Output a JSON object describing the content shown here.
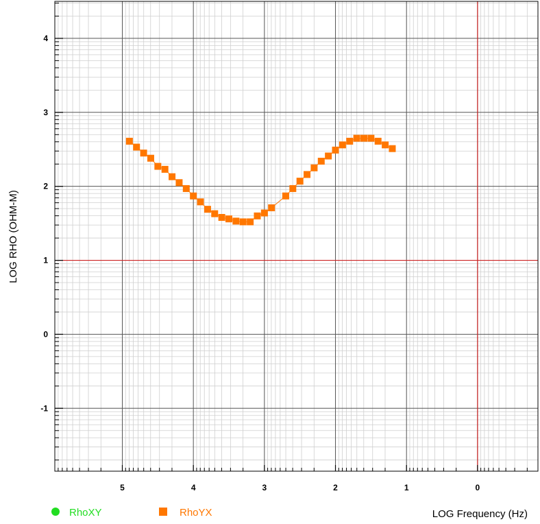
{
  "chart_data": {
    "type": "scatter",
    "xlabel": "LOG Frequency (Hz)",
    "ylabel": "LOG RHO (OHM-M)",
    "x_axis_reversed": true,
    "xlim": [
      5.95,
      -0.85
    ],
    "ylim": [
      -1.85,
      4.5
    ],
    "x_ticks": [
      5,
      4,
      3,
      2,
      1,
      0
    ],
    "x_tick_labels": [
      "5",
      "4",
      "3",
      "2",
      "1",
      "0"
    ],
    "y_ticks": [
      4,
      3,
      2,
      1,
      0,
      -1
    ],
    "y_tick_labels": [
      "4",
      "3",
      "2",
      "1",
      "0",
      "-1"
    ],
    "grid": true,
    "reference_lines": {
      "x": 0,
      "y": 1,
      "color": "#cc2222"
    },
    "legend_position": "bottom-left",
    "series": [
      {
        "name": "RhoXY",
        "color": "#22dd22",
        "marker": "circle",
        "x": [],
        "y": []
      },
      {
        "name": "RhoYX",
        "color": "#ff7700",
        "marker": "square",
        "x": [
          4.9,
          4.8,
          4.7,
          4.6,
          4.5,
          4.4,
          4.3,
          4.2,
          4.1,
          4.0,
          3.9,
          3.8,
          3.7,
          3.6,
          3.5,
          3.4,
          3.3,
          3.2,
          3.1,
          3.0,
          2.9,
          2.7,
          2.6,
          2.5,
          2.4,
          2.3,
          2.2,
          2.1,
          2.0,
          1.9,
          1.8,
          1.7,
          1.6,
          1.5,
          1.4,
          1.3,
          1.2
        ],
        "y": [
          2.61,
          2.53,
          2.45,
          2.38,
          2.27,
          2.23,
          2.13,
          2.05,
          1.97,
          1.87,
          1.79,
          1.69,
          1.63,
          1.58,
          1.56,
          1.53,
          1.52,
          1.52,
          1.6,
          1.64,
          1.71,
          1.87,
          1.97,
          2.07,
          2.16,
          2.25,
          2.34,
          2.41,
          2.49,
          2.56,
          2.61,
          2.65,
          2.65,
          2.65,
          2.61,
          2.56,
          2.51
        ]
      }
    ]
  }
}
